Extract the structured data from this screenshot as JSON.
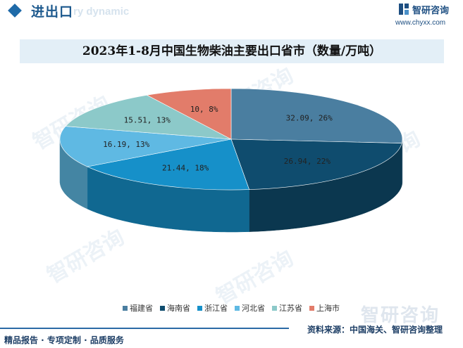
{
  "header": {
    "title": "进出口",
    "subtitle": "ry dynamic",
    "logo_text": "智研咨询",
    "logo_url": "www.chyxx.com"
  },
  "chart_title": "2023年1-8月中国生物柴油主要出口省市（数量/万吨）",
  "chart_data": {
    "type": "pie",
    "title": "2023年1-8月中国生物柴油主要出口省市（数量/万吨）",
    "categories": [
      "福建省",
      "海南省",
      "浙江省",
      "河北省",
      "江苏省",
      "上海市"
    ],
    "values": [
      32.09,
      26.94,
      21.44,
      16.19,
      15.51,
      10
    ],
    "percent": [
      26,
      22,
      18,
      13,
      13,
      8
    ],
    "labels": [
      "32.09, 26%",
      "26.94, 22%",
      "21.44, 18%",
      "16.19, 13%",
      "15.51, 13%",
      "10, 8%"
    ],
    "colors": [
      "#4a7ea0",
      "#0f4c6e",
      "#1690c9",
      "#5fb9e3",
      "#8cc9c9",
      "#e27c6a"
    ],
    "legend_position": "bottom",
    "style": "3d"
  },
  "footer": {
    "left": "精品报告 · 专项定制 · 品质服务",
    "right": "资料来源：中国海关、智研咨询整理",
    "watermark": "智研咨询"
  }
}
